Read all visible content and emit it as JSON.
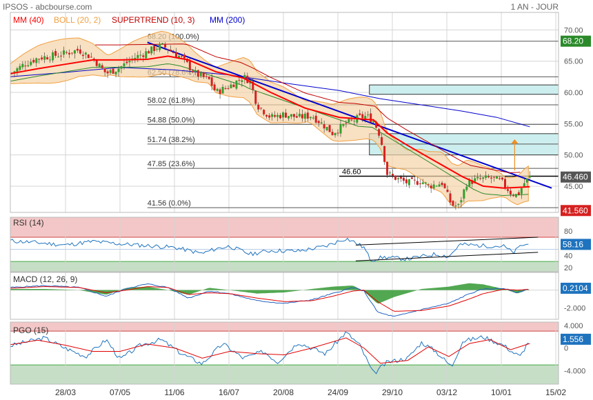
{
  "header": {
    "site": "IPSOS - abcbourse.com",
    "period": "1 AN - JOUR"
  },
  "colors": {
    "mm40": "#ff0000",
    "boll": "#f0a040",
    "supertrend": "#c00000",
    "mm200": "#0000cc",
    "rsi": "#1e73be",
    "macd_line": "#2060c0",
    "signal": "#e00000",
    "histogram": "#339933",
    "pgo": "#1e73be",
    "grid": "#d4d4d4",
    "up": "#33a02c",
    "down": "#d62020"
  },
  "chart_data": [
    {
      "type": "candlestick",
      "title": "IPSOS",
      "indicators": [
        "MM (40)",
        "BOLL (20, 2)",
        "SUPERTREND (10, 3)",
        "MM (200)"
      ],
      "x_tick_labels": [
        "28/03",
        "07/05",
        "11/06",
        "16/07",
        "20/08",
        "24/09",
        "29/10",
        "03/12",
        "10/01",
        "15/02"
      ],
      "y_ticks": [
        45.0,
        50.0,
        55.0,
        60.0,
        65.0,
        70.0
      ],
      "ylim": [
        40.8,
        72.8
      ],
      "last_price": 46.46,
      "last_price_label": "46.460",
      "high_label": "68.20",
      "low_label": "41.560",
      "support_label": "46.60",
      "fibonacci": [
        {
          "label": "68.20 (100.0%)",
          "value": 68.2
        },
        {
          "label": "62.50 (78.6%)",
          "value": 62.5
        },
        {
          "label": "58.02 (61.8%)",
          "value": 58.02
        },
        {
          "label": "54.88 (50.0%)",
          "value": 54.88
        },
        {
          "label": "51.74 (38.2%)",
          "value": 51.74
        },
        {
          "label": "47.85 (23.6%)",
          "value": 47.85
        },
        {
          "label": "41.56 (0.0%)",
          "value": 41.56
        }
      ],
      "gaps": [
        [
          59.7,
          61.2
        ],
        [
          50.0,
          53.4
        ]
      ],
      "price_path": [
        [
          0,
          63.0
        ],
        [
          10,
          64.5
        ],
        [
          20,
          65.5
        ],
        [
          35,
          66.0
        ],
        [
          50,
          66.8
        ],
        [
          60,
          65.5
        ],
        [
          70,
          63.0
        ],
        [
          80,
          64.0
        ],
        [
          90,
          65.5
        ],
        [
          100,
          66.5
        ],
        [
          110,
          67.5
        ],
        [
          115,
          67.0
        ],
        [
          125,
          65.5
        ],
        [
          135,
          63.0
        ],
        [
          145,
          62.0
        ],
        [
          150,
          60.0
        ],
        [
          160,
          61.0
        ],
        [
          170,
          62.5
        ],
        [
          175,
          61.8
        ],
        [
          180,
          58.0
        ],
        [
          190,
          56.0
        ],
        [
          200,
          56.5
        ],
        [
          210,
          56.0
        ],
        [
          220,
          56.3
        ],
        [
          230,
          54.5
        ],
        [
          235,
          53.5
        ],
        [
          245,
          55.0
        ],
        [
          255,
          56.0
        ],
        [
          260,
          56.2
        ],
        [
          265,
          55.5
        ],
        [
          270,
          53.0
        ],
        [
          275,
          47.0
        ],
        [
          282,
          46.2
        ],
        [
          290,
          45.5
        ],
        [
          300,
          45.8
        ],
        [
          305,
          45.0
        ],
        [
          315,
          45.5
        ],
        [
          322,
          42.0
        ],
        [
          327,
          41.8
        ],
        [
          333,
          45.5
        ],
        [
          340,
          46.0
        ],
        [
          350,
          46.3
        ],
        [
          358,
          45.8
        ],
        [
          365,
          44.0
        ],
        [
          370,
          43.5
        ],
        [
          375,
          45.5
        ],
        [
          379,
          46.46
        ]
      ],
      "mm40_path": [
        [
          0,
          63.0
        ],
        [
          20,
          63.8
        ],
        [
          40,
          64.5
        ],
        [
          60,
          65.2
        ],
        [
          80,
          65.2
        ],
        [
          100,
          65.3
        ],
        [
          115,
          65.8
        ],
        [
          130,
          65.2
        ],
        [
          150,
          63.3
        ],
        [
          170,
          62.3
        ],
        [
          190,
          60.0
        ],
        [
          215,
          57.5
        ],
        [
          240,
          56.0
        ],
        [
          265,
          55.6
        ],
        [
          275,
          53.5
        ],
        [
          290,
          51.5
        ],
        [
          310,
          49.0
        ],
        [
          330,
          46.5
        ],
        [
          345,
          45.0
        ],
        [
          360,
          44.7
        ],
        [
          379,
          44.9
        ]
      ],
      "mm200_path": [
        [
          0,
          62.5
        ],
        [
          40,
          63.2
        ],
        [
          80,
          64.0
        ],
        [
          120,
          63.6
        ],
        [
          160,
          62.8
        ],
        [
          200,
          61.5
        ],
        [
          240,
          60.3
        ],
        [
          270,
          59.0
        ],
        [
          300,
          58.0
        ],
        [
          330,
          57.0
        ],
        [
          355,
          56.0
        ],
        [
          379,
          54.5
        ]
      ],
      "trendline_path": [
        [
          100,
          68.0
        ],
        [
          395,
          44.7
        ]
      ],
      "target_arrow": {
        "x": 368,
        "from": 47.5,
        "to": 52.5
      }
    },
    {
      "type": "line",
      "title": "RSI (14)",
      "y_ticks": [
        80,
        60,
        40,
        20
      ],
      "ylim": [
        13,
        103
      ],
      "zones": [
        [
          70,
          103
        ],
        [
          13,
          30
        ]
      ],
      "last_value_label": "58.16",
      "values": [
        [
          0,
          64
        ],
        [
          20,
          61
        ],
        [
          40,
          57
        ],
        [
          60,
          63
        ],
        [
          80,
          59
        ],
        [
          100,
          56
        ],
        [
          120,
          53
        ],
        [
          140,
          43
        ],
        [
          150,
          51
        ],
        [
          160,
          55
        ],
        [
          175,
          42
        ],
        [
          190,
          48
        ],
        [
          210,
          47
        ],
        [
          230,
          55
        ],
        [
          245,
          68
        ],
        [
          250,
          63
        ],
        [
          258,
          53
        ],
        [
          263,
          32
        ],
        [
          272,
          37
        ],
        [
          290,
          34
        ],
        [
          310,
          42
        ],
        [
          320,
          38
        ],
        [
          328,
          58
        ],
        [
          345,
          56
        ],
        [
          360,
          55
        ],
        [
          367,
          44
        ],
        [
          373,
          57
        ],
        [
          379,
          58
        ]
      ],
      "trendlines": [
        [
          [
            252,
            57
          ],
          [
            385,
            70
          ]
        ],
        [
          [
            252,
            31
          ],
          [
            385,
            45
          ]
        ]
      ]
    },
    {
      "type": "line",
      "title": "MACD (12, 26, 9)",
      "y_ticks": [
        0,
        -2
      ],
      "y_tick_labels": [
        "0",
        "-2.000"
      ],
      "ylim": [
        -3.3,
        2.0
      ],
      "last_value_label": "0.2104",
      "macd": [
        [
          0,
          0.3
        ],
        [
          25,
          0.5
        ],
        [
          50,
          0.3
        ],
        [
          70,
          -0.7
        ],
        [
          85,
          0.2
        ],
        [
          100,
          0.7
        ],
        [
          115,
          0.3
        ],
        [
          130,
          -0.9
        ],
        [
          145,
          -0.1
        ],
        [
          160,
          -0.4
        ],
        [
          180,
          -1.2
        ],
        [
          200,
          -1.5
        ],
        [
          220,
          -1.1
        ],
        [
          235,
          -0.4
        ],
        [
          250,
          0.3
        ],
        [
          258,
          -0.1
        ],
        [
          268,
          -2.5
        ],
        [
          280,
          -3.0
        ],
        [
          300,
          -2.2
        ],
        [
          320,
          -1.5
        ],
        [
          335,
          -0.4
        ],
        [
          345,
          0.1
        ],
        [
          360,
          0.2
        ],
        [
          370,
          -0.3
        ],
        [
          379,
          0.2
        ]
      ],
      "signal": [
        [
          0,
          0.2
        ],
        [
          25,
          0.4
        ],
        [
          50,
          0.3
        ],
        [
          70,
          -0.3
        ],
        [
          85,
          0.0
        ],
        [
          100,
          0.4
        ],
        [
          115,
          0.3
        ],
        [
          130,
          -0.5
        ],
        [
          145,
          -0.3
        ],
        [
          160,
          -0.4
        ],
        [
          180,
          -0.9
        ],
        [
          200,
          -1.3
        ],
        [
          220,
          -1.2
        ],
        [
          235,
          -0.7
        ],
        [
          250,
          -0.1
        ],
        [
          258,
          0.0
        ],
        [
          268,
          -1.3
        ],
        [
          280,
          -2.4
        ],
        [
          300,
          -2.3
        ],
        [
          320,
          -1.8
        ],
        [
          335,
          -1.0
        ],
        [
          345,
          -0.4
        ],
        [
          360,
          0.1
        ],
        [
          370,
          0.0
        ],
        [
          379,
          0.1
        ]
      ]
    },
    {
      "type": "line",
      "title": "PGO (15)",
      "y_ticks": [
        4,
        0,
        -4
      ],
      "y_tick_labels": [
        "4.000",
        "0",
        "-4.000"
      ],
      "ylim": [
        -6.4,
        4.6
      ],
      "zones": [
        [
          3,
          4.6
        ],
        [
          -6.4,
          -3
        ]
      ],
      "last_value_label": "1.556",
      "values": [
        [
          0,
          0.4
        ],
        [
          10,
          1.0
        ],
        [
          25,
          1.8
        ],
        [
          40,
          0.0
        ],
        [
          55,
          -1.5
        ],
        [
          70,
          1.5
        ],
        [
          80,
          -2.0
        ],
        [
          95,
          0.5
        ],
        [
          110,
          1.5
        ],
        [
          125,
          -1.0
        ],
        [
          140,
          -2.8
        ],
        [
          155,
          0.8
        ],
        [
          170,
          -1.8
        ],
        [
          185,
          -0.6
        ],
        [
          195,
          -2.5
        ],
        [
          210,
          1.0
        ],
        [
          230,
          -1.0
        ],
        [
          245,
          2.8
        ],
        [
          255,
          0.5
        ],
        [
          265,
          -4.6
        ],
        [
          275,
          -2.5
        ],
        [
          290,
          -1.8
        ],
        [
          300,
          1.0
        ],
        [
          310,
          -0.5
        ],
        [
          322,
          -3.3
        ],
        [
          330,
          1.2
        ],
        [
          345,
          2.0
        ],
        [
          360,
          0.5
        ],
        [
          367,
          -0.8
        ],
        [
          372,
          -1.5
        ],
        [
          379,
          1.6
        ]
      ],
      "signal": [
        [
          0,
          0.6
        ],
        [
          20,
          1.4
        ],
        [
          40,
          0.5
        ],
        [
          60,
          -0.6
        ],
        [
          80,
          -0.6
        ],
        [
          100,
          0.7
        ],
        [
          120,
          0.0
        ],
        [
          140,
          -1.8
        ],
        [
          160,
          -0.6
        ],
        [
          180,
          -1.0
        ],
        [
          200,
          -1.2
        ],
        [
          220,
          0.0
        ],
        [
          245,
          1.8
        ],
        [
          258,
          0.0
        ],
        [
          270,
          -2.7
        ],
        [
          290,
          -2.2
        ],
        [
          305,
          0.2
        ],
        [
          320,
          -1.5
        ],
        [
          335,
          0.8
        ],
        [
          350,
          1.5
        ],
        [
          365,
          -0.3
        ],
        [
          379,
          0.8
        ]
      ]
    }
  ]
}
